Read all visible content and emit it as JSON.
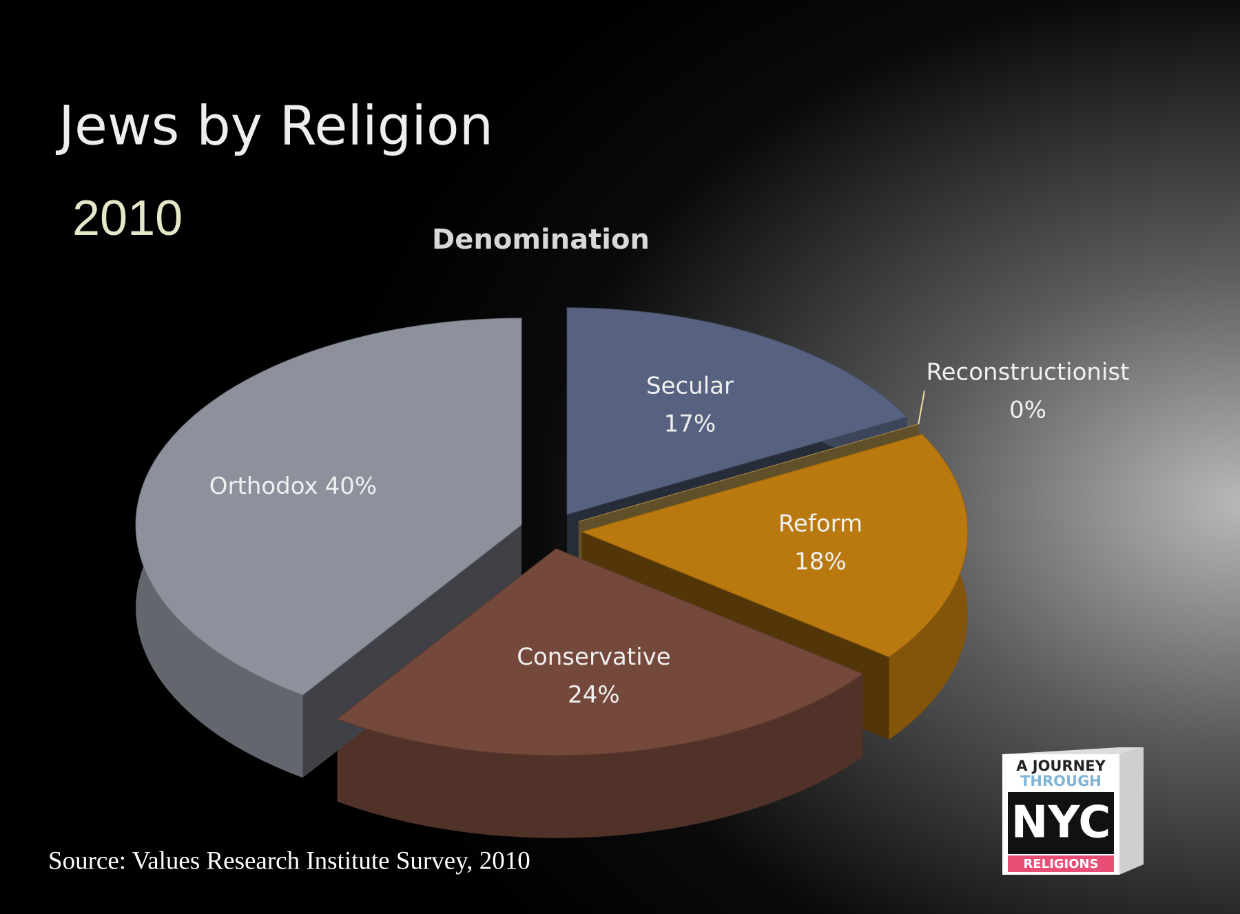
{
  "slide": {
    "title": "Jews by Religion",
    "subtitle": "2010",
    "source": "Source: Values Research Institute Survey, 2010"
  },
  "logo": {
    "line1": "A JOURNEY",
    "line2": "THROUGH",
    "line3": "NYC",
    "line4": "RELIGIONS"
  },
  "chart_data": {
    "type": "pie",
    "title": "Denomination",
    "categories": [
      "Secular",
      "Reconstructionist",
      "Reform",
      "Conservative",
      "Orthodox"
    ],
    "values": [
      17,
      0,
      18,
      24,
      40
    ],
    "value_labels": [
      "17%",
      "0%",
      "18%",
      "24%",
      "40%"
    ],
    "colors": [
      "#56627f",
      "#d6b25a",
      "#b9790f",
      "#74483a",
      "#8c919c"
    ]
  }
}
